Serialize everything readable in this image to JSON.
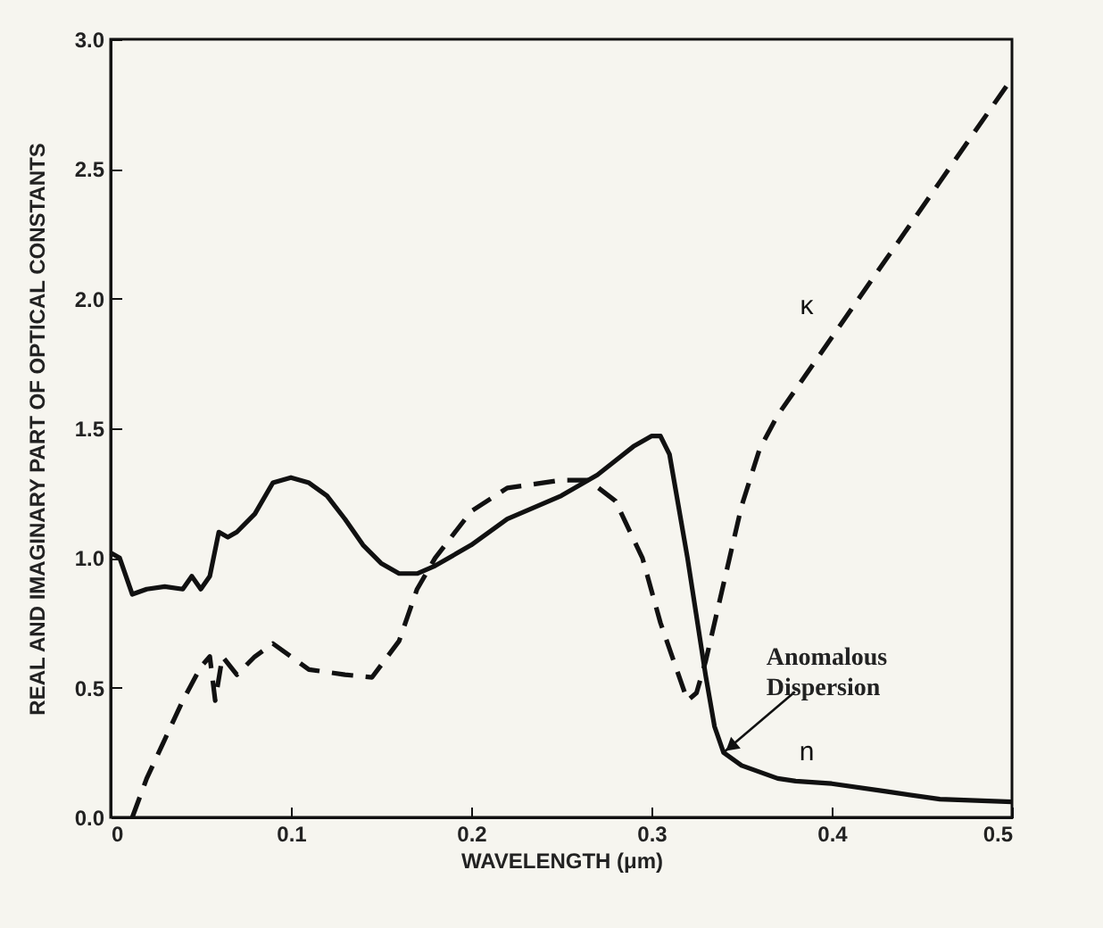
{
  "chart_data": {
    "type": "line",
    "xlabel": "WAVELENGTH (μm)",
    "ylabel": "REAL AND IMAGINARY PART OF OPTICAL CONSTANTS",
    "xlim": [
      0,
      0.5
    ],
    "xticks": [
      0,
      0.1,
      0.2,
      0.3,
      0.4,
      0.5
    ],
    "ylim": [
      0,
      3
    ],
    "yticks": [
      {
        "value": 0,
        "label": "0.0"
      },
      0.5,
      {
        "value": 1,
        "label": "1.0"
      },
      1.5,
      {
        "value": 2,
        "label": "2.0"
      },
      2.5,
      {
        "value": 3,
        "label": "3.0"
      }
    ],
    "grid": false,
    "marker": "none",
    "series": [
      {
        "name": "n",
        "color": "#111111",
        "line_style": "solid",
        "x": [
          0,
          0.005,
          0.012,
          0.02,
          0.03,
          0.04,
          0.045,
          0.05,
          0.055,
          0.06,
          0.065,
          0.07,
          0.08,
          0.09,
          0.1,
          0.11,
          0.12,
          0.13,
          0.14,
          0.15,
          0.16,
          0.17,
          0.18,
          0.2,
          0.22,
          0.25,
          0.27,
          0.29,
          0.3,
          0.305,
          0.31,
          0.32,
          0.33,
          0.335,
          0.34,
          0.35,
          0.37,
          0.38,
          0.4,
          0.43,
          0.46,
          0.5
        ],
        "values": [
          1.02,
          1.0,
          0.86,
          0.88,
          0.89,
          0.88,
          0.93,
          0.88,
          0.93,
          1.1,
          1.08,
          1.1,
          1.17,
          1.29,
          1.31,
          1.29,
          1.24,
          1.15,
          1.05,
          0.98,
          0.94,
          0.94,
          0.97,
          1.05,
          1.15,
          1.24,
          1.32,
          1.43,
          1.47,
          1.47,
          1.4,
          1.0,
          0.55,
          0.35,
          0.25,
          0.2,
          0.15,
          0.14,
          0.13,
          0.1,
          0.07,
          0.06
        ]
      },
      {
        "name": "κ",
        "color": "#111111",
        "line_style": "dashed",
        "x": [
          0.012,
          0.02,
          0.03,
          0.04,
          0.05,
          0.055,
          0.058,
          0.062,
          0.07,
          0.08,
          0.09,
          0.1,
          0.11,
          0.13,
          0.145,
          0.16,
          0.17,
          0.18,
          0.2,
          0.22,
          0.25,
          0.265,
          0.28,
          0.295,
          0.305,
          0.315,
          0.32,
          0.325,
          0.33,
          0.34,
          0.35,
          0.36,
          0.37,
          0.4,
          0.43,
          0.46,
          0.5
        ],
        "values": [
          0,
          0.15,
          0.3,
          0.45,
          0.58,
          0.62,
          0.45,
          0.62,
          0.55,
          0.62,
          0.67,
          0.62,
          0.57,
          0.55,
          0.54,
          0.68,
          0.88,
          1.0,
          1.18,
          1.27,
          1.3,
          1.3,
          1.22,
          1.0,
          0.75,
          0.55,
          0.45,
          0.48,
          0.6,
          0.9,
          1.2,
          1.42,
          1.55,
          1.85,
          2.15,
          2.45,
          2.85
        ]
      }
    ],
    "annotations": [
      {
        "text": "Anomalous Dispersion",
        "x": 0.34,
        "y": 0.25
      }
    ]
  }
}
